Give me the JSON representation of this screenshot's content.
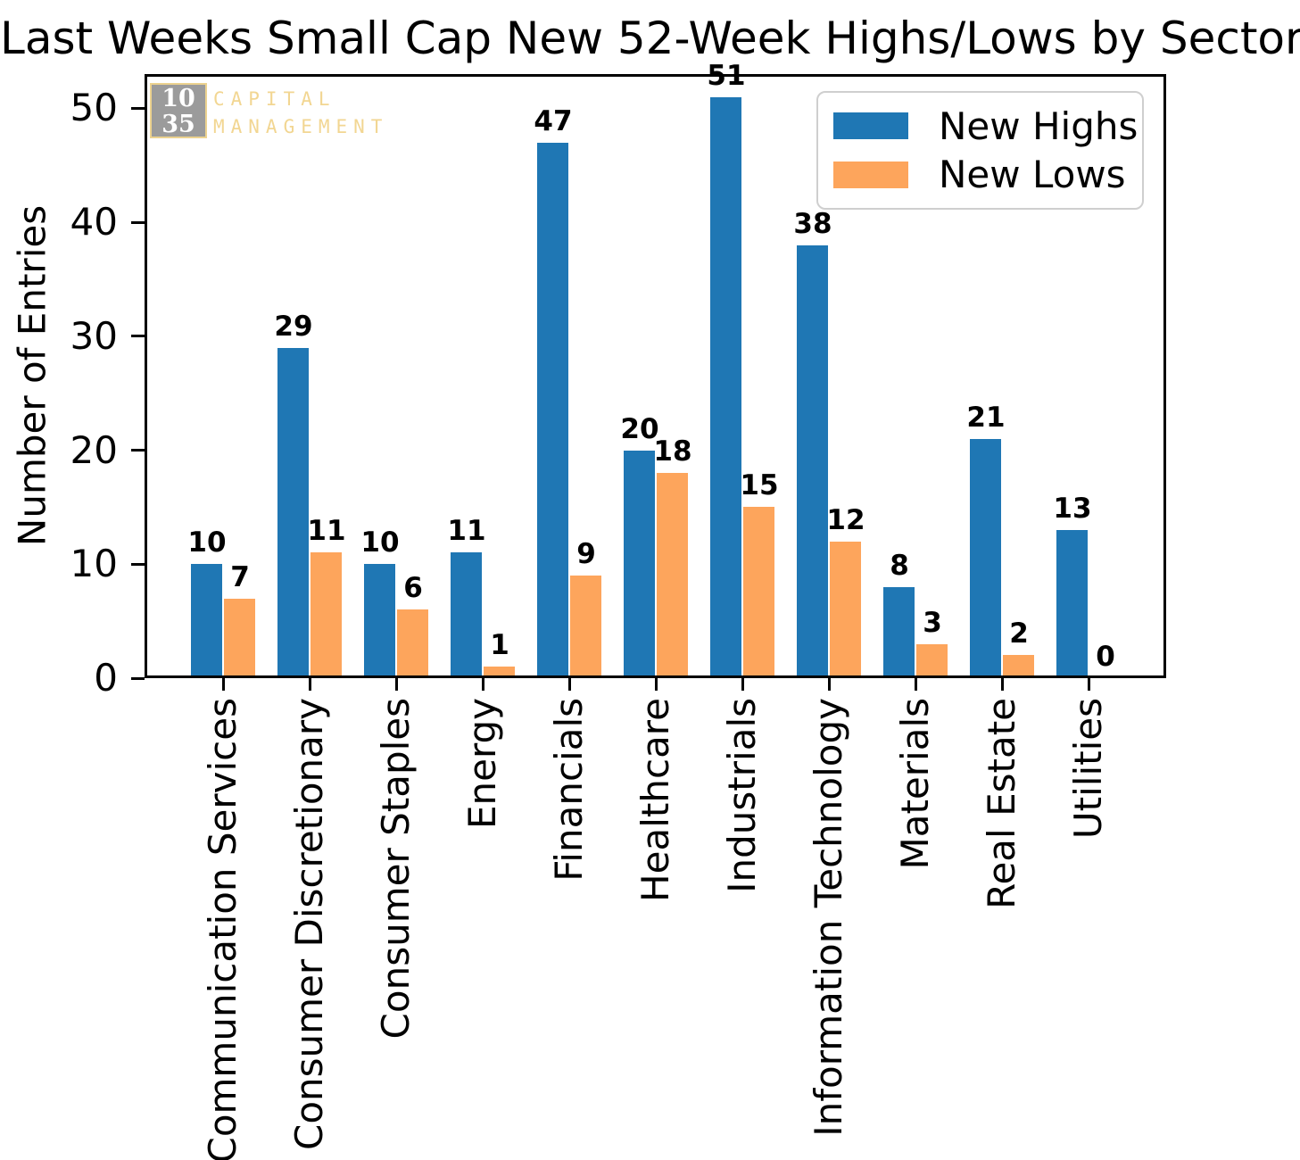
{
  "title": "Last Weeks Small Cap New 52-Week Highs/Lows by Sector",
  "watermark": {
    "number_top": "10",
    "number_bottom": "35",
    "text_line1": "CAPITAL",
    "text_line2": "MANAGEMENT",
    "box_color": "#9b9b9b",
    "accent_color": "#f2d692"
  },
  "chart_data": {
    "type": "bar",
    "title": "Last Weeks Small Cap New 52-Week Highs/Lows by Sector",
    "xlabel": "",
    "ylabel": "Number of Entries",
    "categories": [
      "Communication Services",
      "Consumer Discretionary",
      "Consumer Staples",
      "Energy",
      "Financials",
      "Healthcare",
      "Industrials",
      "Information Technology",
      "Materials",
      "Real Estate",
      "Utilities"
    ],
    "series": [
      {
        "name": "New Highs",
        "color": "#1f77b4",
        "values": [
          10,
          29,
          10,
          11,
          47,
          20,
          51,
          38,
          8,
          21,
          13
        ]
      },
      {
        "name": "New Lows",
        "color": "#fda55c",
        "values": [
          7,
          11,
          6,
          1,
          9,
          18,
          15,
          12,
          3,
          2,
          0
        ]
      }
    ],
    "yticks": [
      0,
      10,
      20,
      30,
      40,
      50
    ],
    "ylim": [
      0,
      53
    ],
    "bar_value_labels": true,
    "grid": false,
    "legend_position": "upper right"
  }
}
